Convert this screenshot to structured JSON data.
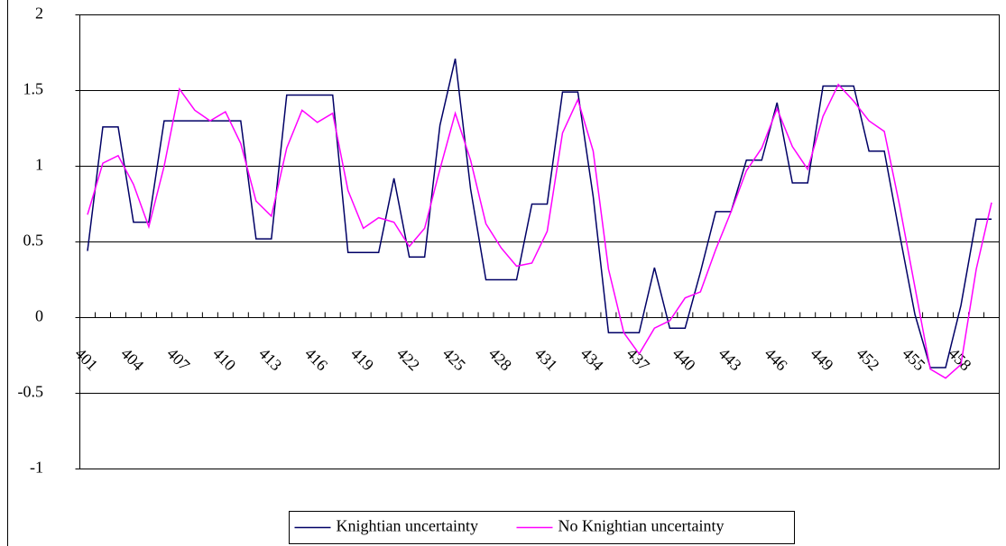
{
  "chart_data": {
    "type": "line",
    "categories": [
      "401",
      null,
      null,
      "404",
      null,
      null,
      "407",
      null,
      null,
      "410",
      null,
      null,
      "413",
      null,
      null,
      "416",
      null,
      null,
      "419",
      null,
      null,
      "422",
      null,
      null,
      "425",
      null,
      null,
      "428",
      null,
      null,
      "431",
      null,
      null,
      "434",
      null,
      null,
      "437",
      null,
      null,
      "440",
      null,
      null,
      "443",
      null,
      null,
      "446",
      null,
      null,
      "449",
      null,
      null,
      "452",
      null,
      null,
      "455",
      null,
      null,
      "458",
      null,
      null
    ],
    "series": [
      {
        "name": "Knightian uncertainty",
        "color": "#000066",
        "values": [
          0.44,
          1.26,
          1.26,
          0.63,
          0.63,
          1.3,
          1.3,
          1.3,
          1.3,
          1.3,
          1.3,
          0.52,
          0.52,
          1.47,
          1.47,
          1.47,
          1.47,
          0.43,
          0.43,
          0.43,
          0.92,
          0.4,
          0.4,
          1.27,
          1.71,
          0.85,
          0.25,
          0.25,
          0.25,
          0.75,
          0.75,
          1.49,
          1.49,
          0.8,
          -0.1,
          -0.1,
          -0.1,
          0.33,
          -0.07,
          -0.07,
          0.3,
          0.7,
          0.7,
          1.04,
          1.04,
          1.42,
          0.89,
          0.89,
          1.53,
          1.53,
          1.53,
          1.1,
          1.1,
          0.55,
          0.02,
          -0.33,
          -0.33,
          0.08,
          0.65,
          0.65
        ]
      },
      {
        "name": "No Knightian uncertainty",
        "color": "#ff00ff",
        "values": [
          0.68,
          1.02,
          1.07,
          0.88,
          0.6,
          1.0,
          1.51,
          1.37,
          1.3,
          1.36,
          1.15,
          0.77,
          0.67,
          1.12,
          1.37,
          1.29,
          1.35,
          0.84,
          0.59,
          0.66,
          0.63,
          0.47,
          0.59,
          0.98,
          1.35,
          1.04,
          0.62,
          0.46,
          0.34,
          0.36,
          0.57,
          1.22,
          1.44,
          1.1,
          0.32,
          -0.1,
          -0.24,
          -0.07,
          -0.02,
          0.13,
          0.17,
          0.45,
          0.7,
          0.97,
          1.12,
          1.38,
          1.13,
          0.98,
          1.33,
          1.54,
          1.43,
          1.3,
          1.23,
          0.74,
          0.2,
          -0.34,
          -0.4,
          -0.31,
          0.32,
          0.76
        ]
      }
    ],
    "ylim": [
      -1,
      2
    ],
    "yticks": [
      -1,
      -0.5,
      0,
      0.5,
      1,
      1.5,
      2
    ],
    "grid": true,
    "legend": "bottom"
  }
}
